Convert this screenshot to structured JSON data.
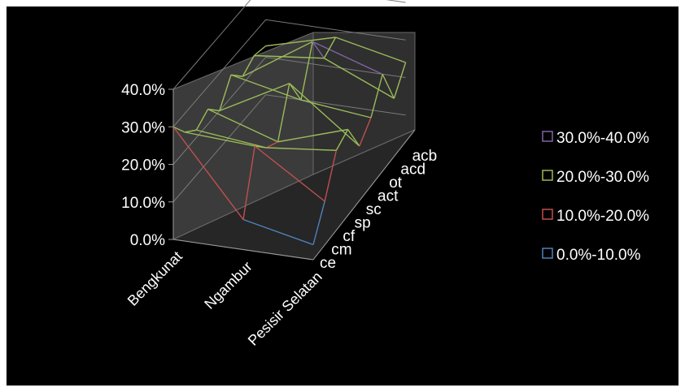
{
  "colors": {
    "background": "#000000",
    "wall": "#3a3a3a",
    "floor": "#2b2b2b",
    "gridline": "#8a8a8a",
    "text": "#ffffff"
  },
  "chart_data": {
    "type": "surface-3d-wireframe",
    "title": "",
    "xlabel": "",
    "ylabel": "",
    "y_tick_labels": [
      "0.0%",
      "10.0%",
      "20.0%",
      "30.0%",
      "40.0%"
    ],
    "ylim": [
      0,
      40
    ],
    "categories": [
      "Bengkunat",
      "Ngambur",
      "Pesisir Selatan"
    ],
    "depth_labels": [
      "ce",
      "cm",
      "cf",
      "sp",
      "sc",
      "act",
      "ot",
      "acd",
      "acb"
    ],
    "bands": [
      {
        "name": "30.0%-40.0%",
        "range": [
          30,
          40
        ],
        "color": "#8064a2"
      },
      {
        "name": "20.0%-30.0%",
        "range": [
          20,
          30
        ],
        "color": "#9bbb59"
      },
      {
        "name": "10.0%-20.0%",
        "range": [
          10,
          20
        ],
        "color": "#c0504d"
      },
      {
        "name": "0.0%-10.0%",
        "range": [
          0,
          10
        ],
        "color": "#4f81bd"
      }
    ],
    "legend_position": "right",
    "grid": true,
    "surface_values_percent": {
      "Bengkunat": [
        30,
        25,
        22,
        24,
        20,
        26,
        22,
        24,
        23
      ],
      "Ngambur": [
        8,
        24,
        20,
        18,
        30,
        22,
        34,
        26,
        28
      ],
      "Pesisir Selatan": [
        4,
        12,
        22,
        24,
        16,
        20,
        28,
        18,
        24
      ]
    }
  }
}
